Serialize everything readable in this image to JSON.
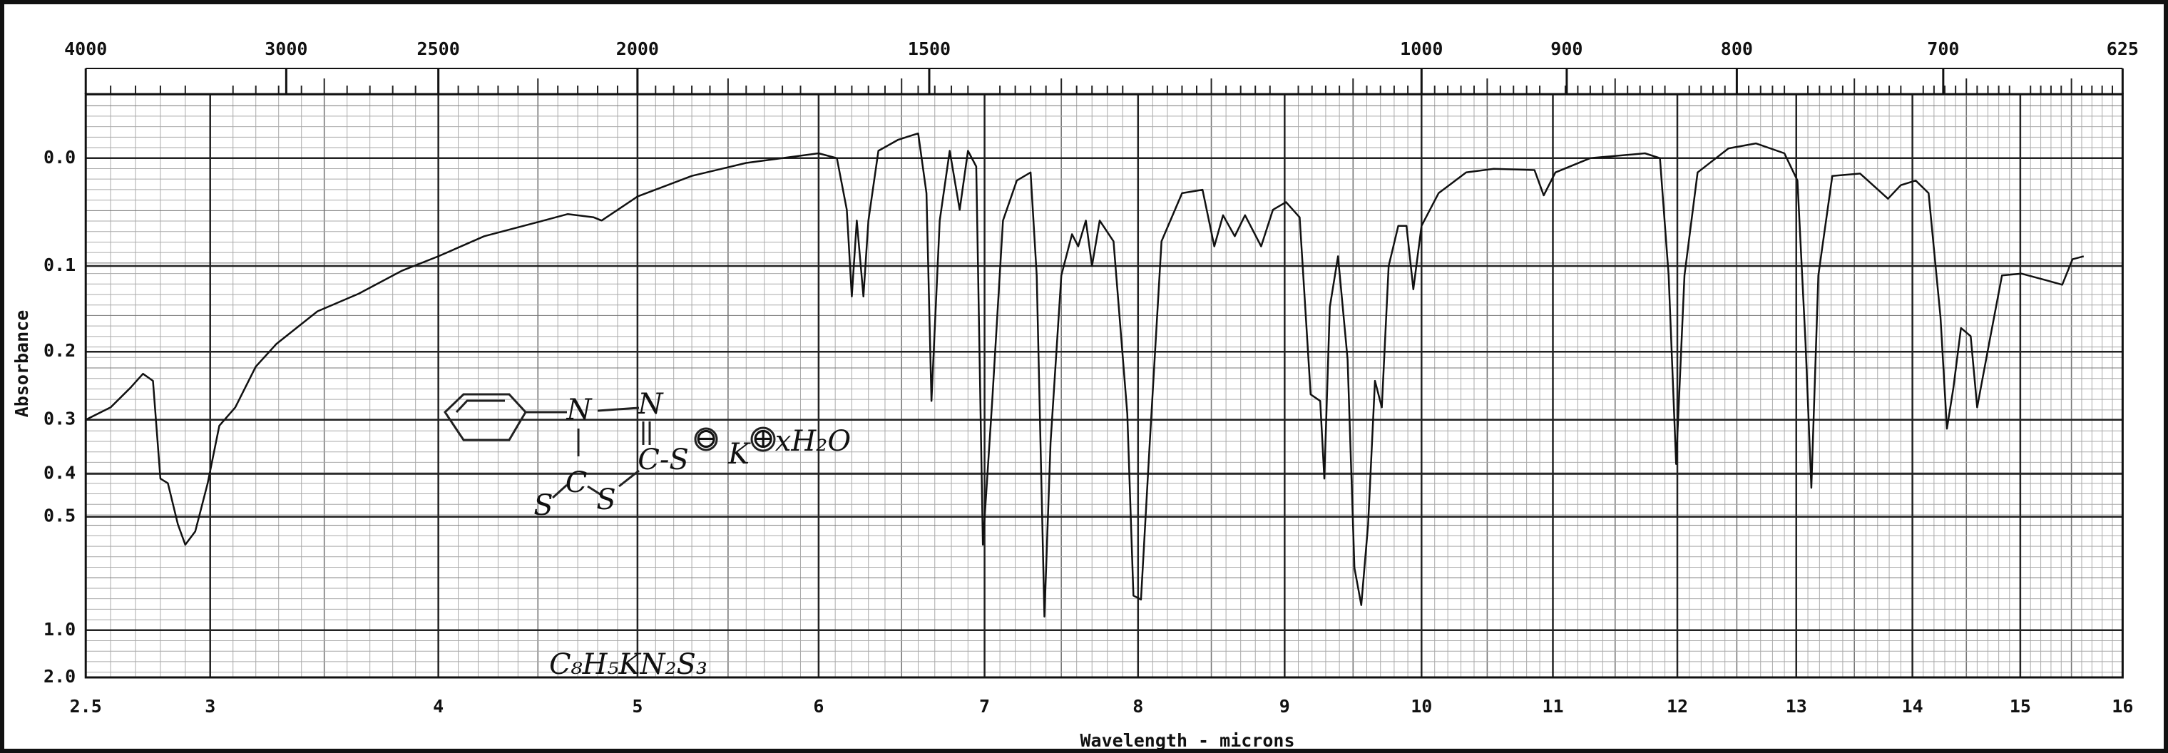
{
  "chart_data": {
    "type": "line",
    "x_label": "Wavelength - microns",
    "y_label": "Absorbance",
    "yscale": "transmittance",
    "color": "#111111",
    "grid": true,
    "xlim": [
      2.5,
      16
    ],
    "xticks": [
      2.5,
      3,
      4,
      5,
      6,
      7,
      8,
      9,
      10,
      11,
      12,
      13,
      14,
      15,
      16
    ],
    "x2ticks": [
      4000,
      3000,
      2500,
      2000,
      1500,
      1000,
      900,
      800,
      700,
      625
    ],
    "ylim": [
      -0.05,
      2.0
    ],
    "yticks": [
      {
        "value": 0,
        "label": "0.0"
      },
      0.1,
      0.2,
      0.3,
      0.4,
      0.5,
      {
        "value": 1,
        "label": "1.0"
      },
      {
        "value": 2,
        "label": "2.0"
      }
    ],
    "annotations": [
      "N",
      "N",
      "C",
      "S",
      "S",
      "C-S",
      "⊖",
      "K",
      "⊕",
      "xH₂O",
      "C₈H₅KN₂S₃"
    ],
    "x": [
      2.5,
      2.6,
      2.68,
      2.73,
      2.77,
      2.8,
      2.83,
      2.87,
      2.9,
      2.94,
      2.99,
      3.04,
      3.11,
      3.2,
      3.29,
      3.47,
      3.65,
      3.84,
      4.0,
      4.23,
      4.51,
      4.65,
      4.78,
      4.82,
      5.0,
      5.3,
      5.6,
      6.0,
      6.11,
      6.17,
      6.2,
      6.23,
      6.27,
      6.3,
      6.36,
      6.48,
      6.6,
      6.65,
      6.68,
      6.73,
      6.79,
      6.85,
      6.9,
      6.95,
      6.99,
      7.05,
      7.12,
      7.21,
      7.3,
      7.34,
      7.39,
      7.43,
      7.5,
      7.57,
      7.61,
      7.66,
      7.7,
      7.75,
      7.84,
      7.93,
      7.97,
      8.02,
      8.08,
      8.16,
      8.3,
      8.44,
      8.52,
      8.58,
      8.66,
      8.73,
      8.84,
      8.92,
      9.01,
      9.11,
      9.19,
      9.26,
      9.29,
      9.33,
      9.39,
      9.46,
      9.51,
      9.56,
      9.61,
      9.66,
      9.71,
      9.76,
      9.83,
      9.89,
      9.94,
      10.0,
      10.13,
      10.34,
      10.55,
      10.86,
      10.93,
      11.02,
      11.3,
      11.74,
      11.86,
      11.93,
      11.99,
      12.06,
      12.17,
      12.43,
      12.66,
      12.9,
      13.01,
      13.08,
      13.13,
      13.19,
      13.31,
      13.55,
      13.79,
      13.9,
      14.03,
      14.15,
      14.26,
      14.32,
      14.38,
      14.45,
      14.54,
      14.6,
      14.71,
      14.83,
      15.01,
      15.25,
      15.41,
      15.51,
      15.62
    ],
    "values": [
      0.3,
      0.28,
      0.25,
      0.23,
      0.24,
      0.41,
      0.42,
      0.52,
      0.58,
      0.54,
      0.42,
      0.31,
      0.28,
      0.22,
      0.19,
      0.15,
      0.13,
      0.105,
      0.09,
      0.07,
      0.056,
      0.049,
      0.052,
      0.055,
      0.033,
      0.015,
      0.004,
      -0.004,
      0,
      0.045,
      0.133,
      0.055,
      0.133,
      0.055,
      -0.006,
      -0.015,
      -0.02,
      0.03,
      0.27,
      0.055,
      -0.006,
      0.045,
      -0.006,
      0.007,
      0.58,
      0.27,
      0.055,
      0.019,
      0.012,
      0.11,
      0.9,
      0.34,
      0.11,
      0.068,
      0.08,
      0.055,
      0.1,
      0.055,
      0.075,
      0.29,
      0.78,
      0.8,
      0.34,
      0.075,
      0.03,
      0.027,
      0.08,
      0.05,
      0.07,
      0.05,
      0.08,
      0.045,
      0.038,
      0.052,
      0.26,
      0.27,
      0.41,
      0.145,
      0.09,
      0.21,
      0.66,
      0.83,
      0.52,
      0.24,
      0.28,
      0.1,
      0.06,
      0.06,
      0.125,
      0.06,
      0.03,
      0.012,
      0.009,
      0.01,
      0.032,
      0.012,
      0,
      -0.004,
      0,
      0.11,
      0.38,
      0.11,
      0.012,
      -0.008,
      -0.012,
      -0.004,
      0.019,
      0.19,
      0.43,
      0.11,
      0.015,
      0.013,
      0.035,
      0.023,
      0.019,
      0.03,
      0.157,
      0.315,
      0.25,
      0.17,
      0.18,
      0.28,
      0.19,
      0.11,
      0.108,
      0.115,
      0.12,
      0.093,
      0.09
    ]
  }
}
